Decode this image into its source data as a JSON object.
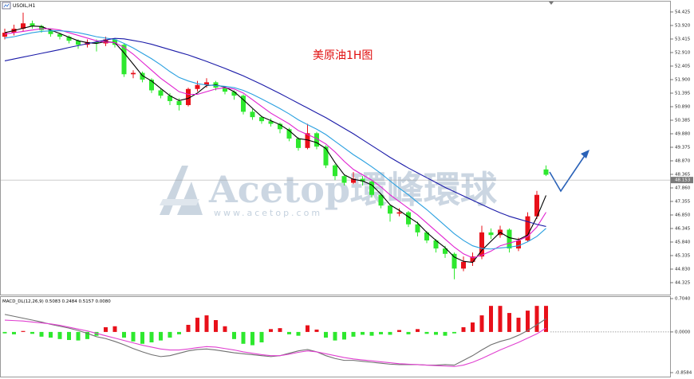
{
  "chart_data": [
    {
      "type": "candlestick",
      "title": "USOIL,H1",
      "annotation": "美原油1H图",
      "watermark": {
        "brand": "Acetop環峰環球",
        "url": "www.acetop.com"
      },
      "up_color": "#e8101a",
      "down_color": "#2ee82e",
      "open": [
        53.5,
        53.65,
        53.8,
        54.0,
        53.9,
        53.75,
        53.6,
        53.5,
        53.35,
        53.2,
        53.3,
        53.25,
        53.4,
        53.2,
        52.1,
        52.15,
        51.9,
        51.5,
        51.3,
        51.1,
        50.95,
        51.55,
        51.7,
        51.8,
        51.6,
        51.45,
        51.3,
        50.7,
        50.5,
        50.35,
        50.25,
        50.05,
        49.7,
        49.35,
        49.9,
        49.4,
        48.7,
        48.3,
        48.05,
        48.2,
        48.1,
        47.6,
        47.2,
        46.9,
        46.95,
        46.5,
        46.2,
        45.9,
        45.6,
        45.4,
        44.85,
        45.1,
        45.3,
        46.2,
        46.1,
        46.3,
        45.6,
        45.9,
        46.8,
        48.55
      ],
      "high": [
        53.8,
        53.95,
        54.4,
        54.1,
        53.95,
        53.8,
        53.65,
        53.55,
        53.4,
        53.4,
        53.4,
        53.5,
        53.45,
        53.25,
        52.25,
        52.2,
        51.95,
        51.55,
        51.4,
        51.2,
        51.6,
        51.85,
        51.95,
        51.85,
        51.65,
        51.5,
        51.35,
        50.8,
        50.55,
        50.45,
        50.3,
        50.1,
        49.75,
        50.25,
        49.95,
        49.45,
        48.75,
        48.35,
        48.45,
        48.3,
        48.15,
        47.65,
        47.25,
        47.1,
        47.0,
        46.6,
        46.25,
        45.95,
        45.7,
        45.45,
        45.3,
        45.45,
        46.45,
        46.35,
        46.45,
        46.35,
        46.0,
        46.95,
        47.75,
        48.7
      ],
      "low": [
        53.4,
        53.55,
        53.7,
        53.8,
        53.65,
        53.5,
        53.4,
        53.25,
        53.05,
        53.1,
        52.95,
        53.15,
        53.1,
        52.0,
        51.95,
        51.8,
        51.4,
        51.2,
        50.95,
        50.75,
        50.9,
        51.45,
        51.6,
        51.5,
        51.35,
        51.15,
        50.6,
        50.4,
        50.25,
        50.15,
        49.9,
        49.6,
        49.25,
        49.3,
        49.3,
        48.6,
        48.15,
        47.95,
        48.0,
        47.95,
        47.5,
        47.1,
        46.6,
        46.8,
        46.4,
        46.05,
        45.8,
        45.45,
        45.25,
        44.45,
        44.75,
        44.95,
        45.2,
        45.95,
        46.0,
        45.45,
        45.5,
        45.85,
        46.7,
        48.3
      ],
      "close": [
        53.65,
        53.8,
        54.0,
        53.9,
        53.75,
        53.6,
        53.5,
        53.35,
        53.2,
        53.3,
        53.25,
        53.4,
        53.2,
        52.1,
        52.15,
        51.9,
        51.5,
        51.3,
        51.1,
        50.95,
        51.55,
        51.7,
        51.8,
        51.6,
        51.45,
        51.3,
        50.7,
        50.5,
        50.35,
        50.25,
        50.05,
        49.7,
        49.35,
        49.9,
        49.4,
        48.7,
        48.3,
        48.05,
        48.2,
        48.1,
        47.6,
        47.2,
        46.9,
        46.95,
        46.5,
        46.2,
        45.9,
        45.6,
        45.4,
        44.85,
        45.1,
        45.3,
        46.2,
        46.1,
        46.3,
        45.6,
        45.9,
        46.8,
        47.6,
        48.35
      ],
      "lines": [
        {
          "color": "#000000",
          "values": [
            53.65,
            53.73,
            53.82,
            53.9,
            53.88,
            53.75,
            53.62,
            53.48,
            53.35,
            53.28,
            53.25,
            53.32,
            53.28,
            52.9,
            52.48,
            52.05,
            51.85,
            51.57,
            51.3,
            51.12,
            51.2,
            51.4,
            51.68,
            51.7,
            51.62,
            51.45,
            51.15,
            50.83,
            50.52,
            50.37,
            50.22,
            50.0,
            49.7,
            49.65,
            49.55,
            49.33,
            48.8,
            48.35,
            48.18,
            48.12,
            47.97,
            47.63,
            47.23,
            47.02,
            46.78,
            46.55,
            46.2,
            45.9,
            45.63,
            45.28,
            45.12,
            45.08,
            45.53,
            45.87,
            46.2,
            46.0,
            45.93,
            46.1,
            46.77,
            47.58
          ]
        },
        {
          "color": "#e020d0",
          "values": [
            53.6,
            53.65,
            53.7,
            53.75,
            53.8,
            53.8,
            53.75,
            53.65,
            53.55,
            53.45,
            53.35,
            53.3,
            53.28,
            53.1,
            52.85,
            52.55,
            52.25,
            51.95,
            51.7,
            51.45,
            51.35,
            51.35,
            51.45,
            51.55,
            51.6,
            51.55,
            51.4,
            51.15,
            50.9,
            50.65,
            50.45,
            50.25,
            50.0,
            49.85,
            49.7,
            49.5,
            49.2,
            48.85,
            48.55,
            48.35,
            48.15,
            47.9,
            47.6,
            47.35,
            47.1,
            46.85,
            46.55,
            46.25,
            45.95,
            45.65,
            45.4,
            45.25,
            45.35,
            45.5,
            45.7,
            45.8,
            45.9,
            46.05,
            46.4,
            46.95
          ]
        },
        {
          "color": "#2aa0e0",
          "values": [
            53.45,
            53.5,
            53.58,
            53.65,
            53.7,
            53.72,
            53.72,
            53.7,
            53.65,
            53.58,
            53.5,
            53.45,
            53.4,
            53.25,
            53.08,
            52.88,
            52.68,
            52.45,
            52.2,
            51.98,
            51.85,
            51.75,
            51.7,
            51.68,
            51.65,
            51.6,
            51.5,
            51.35,
            51.18,
            51.0,
            50.82,
            50.62,
            50.4,
            50.22,
            50.05,
            49.85,
            49.6,
            49.35,
            49.1,
            48.88,
            48.65,
            48.4,
            48.12,
            47.85,
            47.6,
            47.32,
            47.05,
            46.75,
            46.45,
            46.15,
            45.9,
            45.7,
            45.6,
            45.58,
            45.62,
            45.65,
            45.7,
            45.85,
            46.05,
            46.35
          ]
        },
        {
          "color": "#1a1aa8",
          "values": [
            52.6,
            52.67,
            52.74,
            52.81,
            52.88,
            52.95,
            53.02,
            53.1,
            53.17,
            53.24,
            53.31,
            53.38,
            53.44,
            53.42,
            53.36,
            53.3,
            53.22,
            53.12,
            53.02,
            52.92,
            52.82,
            52.7,
            52.58,
            52.45,
            52.32,
            52.18,
            52.04,
            51.88,
            51.72,
            51.55,
            51.38,
            51.2,
            51.02,
            50.84,
            50.66,
            50.48,
            50.28,
            50.08,
            49.88,
            49.66,
            49.44,
            49.22,
            49.0,
            48.8,
            48.6,
            48.42,
            48.24,
            48.06,
            47.88,
            47.72,
            47.56,
            47.4,
            47.24,
            47.08,
            46.93,
            46.8,
            46.7,
            46.6,
            46.5,
            46.42
          ]
        }
      ],
      "last_price": 48.153,
      "ylim": [
        43.879,
        54.811
      ],
      "yticks": [
        54.425,
        {
          "value": 53.92,
          "label": "53.920"
        },
        53.415,
        {
          "value": 52.91,
          "label": "52.910"
        },
        52.405,
        {
          "value": 51.9,
          "label": "51.900"
        },
        51.395,
        {
          "value": 50.89,
          "label": "50.890"
        },
        50.385,
        {
          "value": 49.88,
          "label": "49.880"
        },
        49.375,
        {
          "value": 48.87,
          "label": "48.870"
        },
        48.365,
        {
          "value": 47.86,
          "label": "47.860"
        },
        47.355,
        {
          "value": 46.85,
          "label": "46.850"
        },
        46.345,
        {
          "value": 45.84,
          "label": "45.840"
        },
        45.335,
        {
          "value": 44.83,
          "label": "44.830"
        },
        44.325
      ]
    },
    {
      "type": "bar",
      "title": "MACD_DL(12,26,9) 0.5083 0.2484 0.5157 0.0080",
      "pos_color": "#e8101a",
      "neg_color": "#2ee82e",
      "values": [
        -0.03,
        -0.05,
        0.02,
        -0.04,
        -0.1,
        -0.12,
        -0.15,
        -0.17,
        -0.18,
        -0.15,
        -0.08,
        0.1,
        0.12,
        -0.12,
        -0.2,
        -0.25,
        -0.22,
        -0.18,
        -0.12,
        -0.05,
        0.15,
        0.3,
        0.35,
        0.25,
        0.12,
        -0.15,
        -0.25,
        -0.28,
        -0.22,
        0.06,
        0.08,
        -0.05,
        -0.08,
        0.14,
        0.05,
        -0.12,
        -0.18,
        -0.16,
        -0.1,
        -0.06,
        -0.08,
        -0.05,
        -0.06,
        0.04,
        -0.05,
        0.06,
        -0.04,
        -0.06,
        -0.08,
        -0.03,
        0.1,
        0.2,
        0.35,
        0.55,
        0.55,
        0.4,
        0.3,
        0.45,
        0.55,
        0.55
      ],
      "lines": [
        {
          "color": "#707070",
          "values": [
            0.37,
            0.33,
            0.29,
            0.25,
            0.21,
            0.16,
            0.12,
            0.08,
            0.03,
            -0.03,
            -0.1,
            -0.14,
            -0.2,
            -0.27,
            -0.35,
            -0.42,
            -0.48,
            -0.52,
            -0.5,
            -0.45,
            -0.4,
            -0.37,
            -0.36,
            -0.38,
            -0.41,
            -0.44,
            -0.46,
            -0.48,
            -0.5,
            -0.52,
            -0.5,
            -0.45,
            -0.4,
            -0.37,
            -0.42,
            -0.5,
            -0.56,
            -0.6,
            -0.6,
            -0.62,
            -0.64,
            -0.66,
            -0.68,
            -0.69,
            -0.69,
            -0.69,
            -0.7,
            -0.7,
            -0.69,
            -0.7,
            -0.6,
            -0.5,
            -0.38,
            -0.27,
            -0.2,
            -0.15,
            -0.07,
            0.03,
            0.15,
            0.28
          ]
        },
        {
          "color": "#e040d0",
          "values": [
            0.25,
            0.24,
            0.23,
            0.21,
            0.19,
            0.17,
            0.14,
            0.1,
            0.06,
            0.02,
            -0.03,
            -0.08,
            -0.13,
            -0.18,
            -0.23,
            -0.28,
            -0.32,
            -0.36,
            -0.38,
            -0.38,
            -0.36,
            -0.33,
            -0.31,
            -0.32,
            -0.35,
            -0.38,
            -0.42,
            -0.45,
            -0.48,
            -0.5,
            -0.5,
            -0.47,
            -0.43,
            -0.4,
            -0.42,
            -0.46,
            -0.5,
            -0.54,
            -0.57,
            -0.59,
            -0.61,
            -0.63,
            -0.65,
            -0.67,
            -0.68,
            -0.69,
            -0.7,
            -0.71,
            -0.72,
            -0.73,
            -0.7,
            -0.64,
            -0.56,
            -0.47,
            -0.38,
            -0.3,
            -0.22,
            -0.13,
            -0.04,
            0.08
          ]
        }
      ],
      "ylim": [
        -0.8584,
        0.704
      ],
      "yticks": [
        {
          "value": 0.704,
          "label": "0.7040"
        },
        {
          "value": 0,
          "label": "0.0000"
        },
        -0.8584
      ]
    }
  ]
}
